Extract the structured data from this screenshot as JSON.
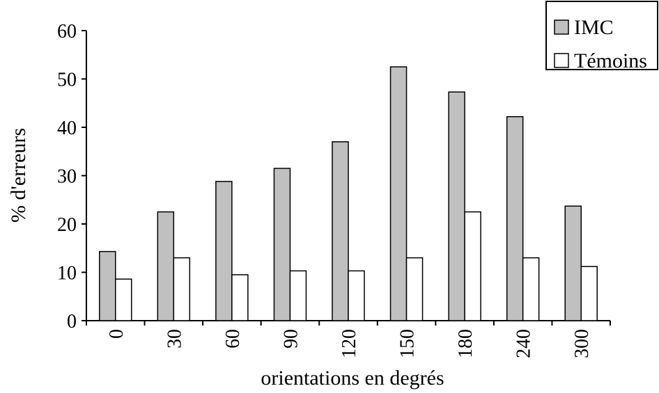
{
  "chart_data": {
    "type": "bar",
    "title": "",
    "xlabel": "orientations en degrés",
    "ylabel": "% d'erreurs",
    "ylim": [
      0,
      60
    ],
    "yticks": [
      "0",
      "10",
      "20",
      "30",
      "40",
      "50",
      "60"
    ],
    "categories": [
      "0",
      "30",
      "60",
      "90",
      "120",
      "150",
      "180",
      "240",
      "300"
    ],
    "series": [
      {
        "name": "IMC",
        "color": "#c0c0c0",
        "values": [
          14.3,
          22.5,
          28.8,
          31.5,
          37.0,
          52.5,
          47.3,
          42.2,
          23.7
        ]
      },
      {
        "name": "Témoins",
        "color": "#ffffff",
        "values": [
          8.6,
          13.0,
          9.5,
          10.3,
          10.3,
          13.0,
          22.5,
          13.0,
          11.2
        ]
      }
    ],
    "legend_position": "top-right",
    "grid": false
  }
}
